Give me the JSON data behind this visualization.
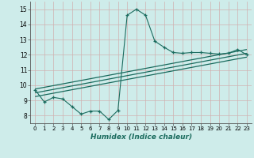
{
  "xlabel": "Humidex (Indice chaleur)",
  "bg_color": "#ceecea",
  "grid_color": "#b8dbd8",
  "line_color": "#1a6b5e",
  "xlim": [
    -0.5,
    23.5
  ],
  "ylim": [
    7.5,
    15.5
  ],
  "xticks": [
    0,
    1,
    2,
    3,
    4,
    5,
    6,
    7,
    8,
    9,
    10,
    11,
    12,
    13,
    14,
    15,
    16,
    17,
    18,
    19,
    20,
    21,
    22,
    23
  ],
  "yticks": [
    8,
    9,
    10,
    11,
    12,
    13,
    14,
    15
  ],
  "main_x": [
    0,
    1,
    2,
    3,
    4,
    5,
    6,
    7,
    8,
    9,
    10,
    11,
    12,
    13,
    14,
    15,
    16,
    17,
    18,
    19,
    20,
    21,
    22,
    23
  ],
  "main_y": [
    9.7,
    8.9,
    9.2,
    9.1,
    8.6,
    8.1,
    8.3,
    8.3,
    7.75,
    8.35,
    14.6,
    15.0,
    14.6,
    12.9,
    12.5,
    12.15,
    12.1,
    12.15,
    12.15,
    12.1,
    12.05,
    12.1,
    12.35,
    12.0
  ],
  "line1_x": [
    0,
    23
  ],
  "line1_y": [
    9.25,
    11.85
  ],
  "line2_x": [
    0,
    23
  ],
  "line2_y": [
    9.5,
    12.1
  ],
  "line3_x": [
    0,
    23
  ],
  "line3_y": [
    9.75,
    12.35
  ]
}
